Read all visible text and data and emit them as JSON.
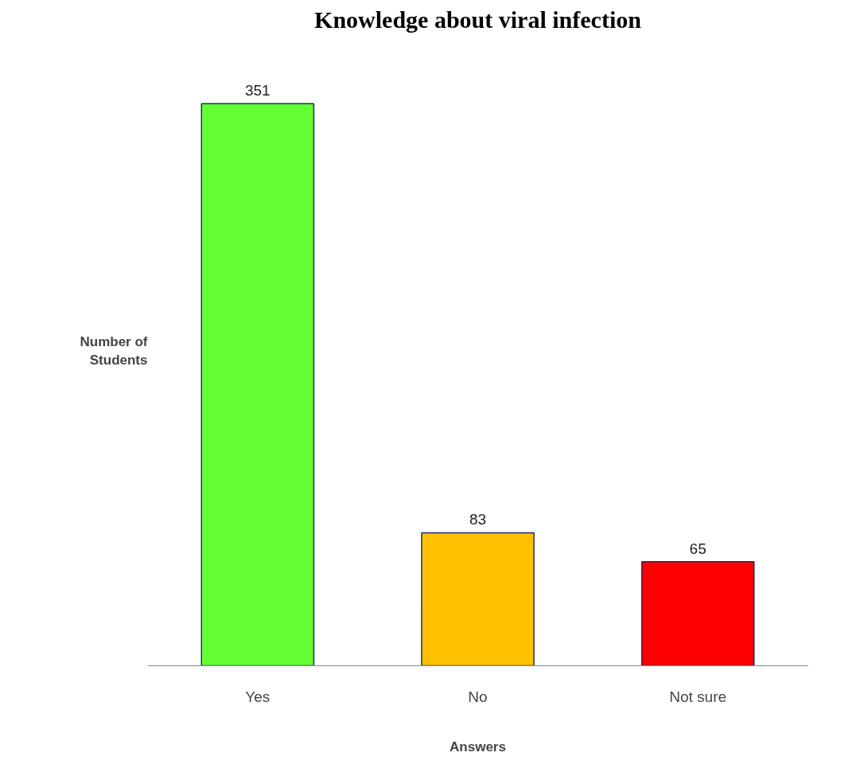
{
  "chart_data": {
    "type": "bar",
    "title": "Knowledge about viral infection",
    "categories": [
      "Yes",
      "No",
      "Not sure"
    ],
    "values": [
      351,
      83,
      65
    ],
    "colors": [
      "#66ff33",
      "#ffc000",
      "#ff0000"
    ],
    "xlabel": "Answers",
    "ylabel": "Number of Students",
    "data_labels": true,
    "grid": false
  }
}
